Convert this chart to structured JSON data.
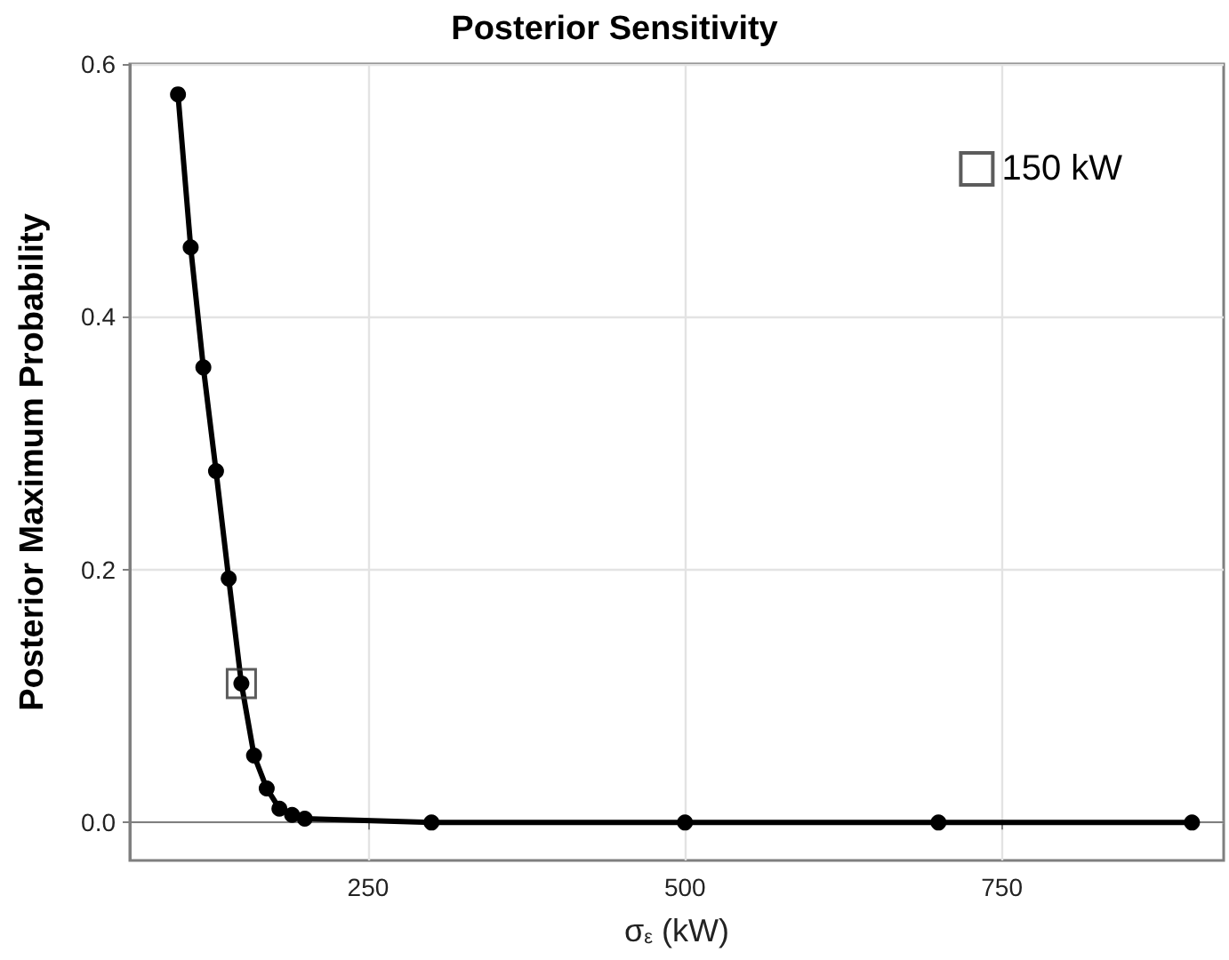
{
  "chart_data": {
    "type": "line",
    "title": "Posterior Sensitivity",
    "xlabel": "σ$_{ε}$ (kW)",
    "ylabel": "Posterior Maximum Probability",
    "xlim": [
      62,
      925
    ],
    "xticks": [
      250,
      500,
      750
    ],
    "ylim": [
      -0.03,
      0.6
    ],
    "yticks": [
      {
        "value": 0,
        "label": "0.0"
      },
      0.2,
      0.4,
      0.6
    ],
    "grid": true,
    "legend": "top right",
    "marker": "circle",
    "line_style": "solid",
    "series": [
      {
        "color": "#000000",
        "x": [
          100,
          110,
          120,
          130,
          140,
          150,
          160,
          170,
          180,
          190,
          200,
          300,
          500,
          700,
          900
        ],
        "values": [
          0.576,
          0.455,
          0.36,
          0.278,
          0.193,
          0.11,
          0.053,
          0.027,
          0.011,
          0.006,
          0.003,
          0,
          0,
          0,
          0
        ]
      },
      {
        "type": "scatter",
        "name": "150 kW",
        "marker": "square",
        "color": "#333333",
        "x": [
          150
        ],
        "values": [
          0.11
        ]
      }
    ]
  }
}
